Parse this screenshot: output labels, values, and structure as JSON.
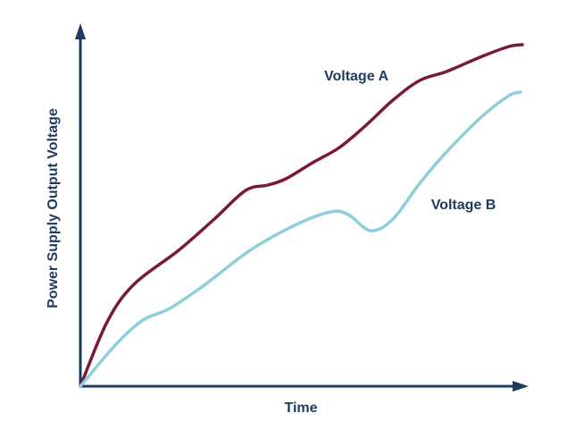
{
  "chart_data": {
    "type": "line",
    "x_label": "Time",
    "y_label": "Power Supply Output Voltage",
    "xlim": [
      0,
      100
    ],
    "ylim": [
      0,
      100
    ],
    "series": [
      {
        "name": "Voltage A",
        "color": "#7a1a3a",
        "x": [
          0,
          6,
          12,
          22,
          30,
          37,
          42,
          46,
          52,
          58,
          64,
          70,
          76,
          82,
          90,
          96,
          99
        ],
        "values": [
          0,
          18,
          28.5,
          38,
          46.75,
          54.75,
          56.25,
          58,
          62.5,
          66.75,
          73,
          80,
          85.5,
          88,
          92.25,
          95,
          95.5
        ]
      },
      {
        "name": "Voltage B",
        "color": "#8ecfdb",
        "x": [
          0,
          8,
          14,
          20,
          28,
          38,
          48,
          56,
          60,
          65,
          70,
          76,
          82,
          90,
          96,
          98.6
        ],
        "values": [
          0,
          11.75,
          18.5,
          21.75,
          28.5,
          38,
          45,
          48.75,
          48,
          43.5,
          46.75,
          56.75,
          65.5,
          75.5,
          81.25,
          82.25
        ]
      }
    ]
  }
}
